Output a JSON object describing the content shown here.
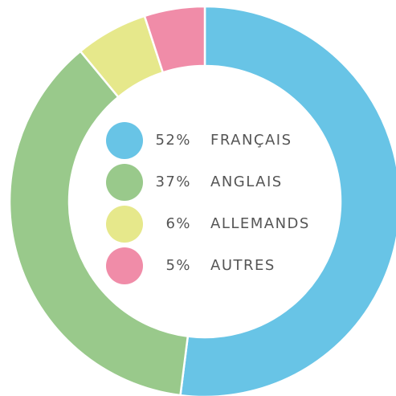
{
  "chart_data": {
    "type": "donut",
    "categories": [
      "FRANÇAIS",
      "ANGLAIS",
      "ALLEMANDS",
      "AUTRES"
    ],
    "values": [
      52,
      37,
      6,
      5
    ],
    "value_labels": [
      "52%",
      "37%",
      "6%",
      "5%"
    ],
    "colors": [
      "#68c4e6",
      "#99c98b",
      "#e6e88b",
      "#f08ca8"
    ]
  }
}
